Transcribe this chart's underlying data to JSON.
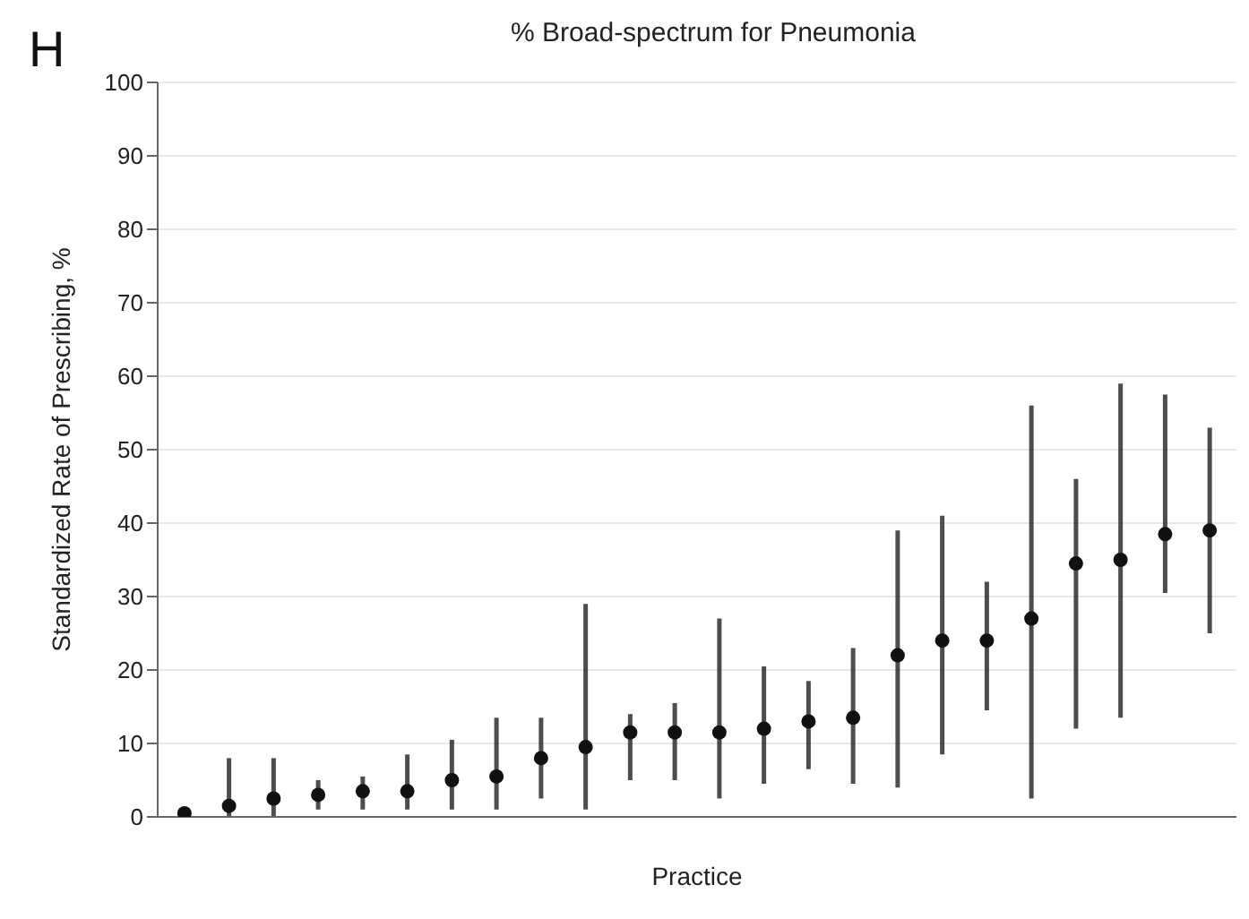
{
  "chart_data": {
    "type": "scatter",
    "title": "% Broad-spectrum for Pneumonia",
    "xlabel": "Practice",
    "ylabel": "Standardized Rate of Prescribing, %",
    "annotations": [
      "H"
    ],
    "categories": [
      null,
      null,
      null,
      null,
      null,
      null,
      null,
      null,
      null,
      null,
      null,
      null,
      null,
      null,
      null,
      null,
      null,
      null,
      null,
      null,
      null,
      null,
      null,
      null
    ],
    "series": [
      {
        "color": "#111111",
        "values": [
          0.5,
          1.5,
          2.5,
          3,
          3.5,
          3.5,
          5,
          5.5,
          8,
          9.5,
          11.5,
          11.5,
          11.5,
          12,
          13,
          13.5,
          22,
          24,
          24,
          27,
          34.5,
          35,
          38.5,
          39
        ],
        "errors": [
          [
            0,
            1
          ],
          [
            0,
            8
          ],
          [
            0,
            8
          ],
          [
            1,
            5
          ],
          [
            1,
            5.5
          ],
          [
            1,
            8.5
          ],
          [
            1,
            10.5
          ],
          [
            1,
            13.5
          ],
          [
            2.5,
            13.5
          ],
          [
            1,
            29
          ],
          [
            5,
            14
          ],
          [
            5,
            15.5
          ],
          [
            2.5,
            27
          ],
          [
            4.5,
            20.5
          ],
          [
            6.5,
            18.5
          ],
          [
            4.5,
            23
          ],
          [
            4,
            39
          ],
          [
            8.5,
            41
          ],
          [
            14.5,
            32
          ],
          [
            2.5,
            56
          ],
          [
            12,
            46
          ],
          [
            13.5,
            59
          ],
          [
            30.5,
            57.5
          ],
          [
            25,
            53
          ]
        ]
      }
    ],
    "ylim": [
      0,
      100
    ],
    "yticks": [
      0,
      10,
      20,
      30,
      40,
      50,
      60,
      70,
      80,
      90,
      100
    ],
    "grid": "y",
    "marker": "circle"
  }
}
